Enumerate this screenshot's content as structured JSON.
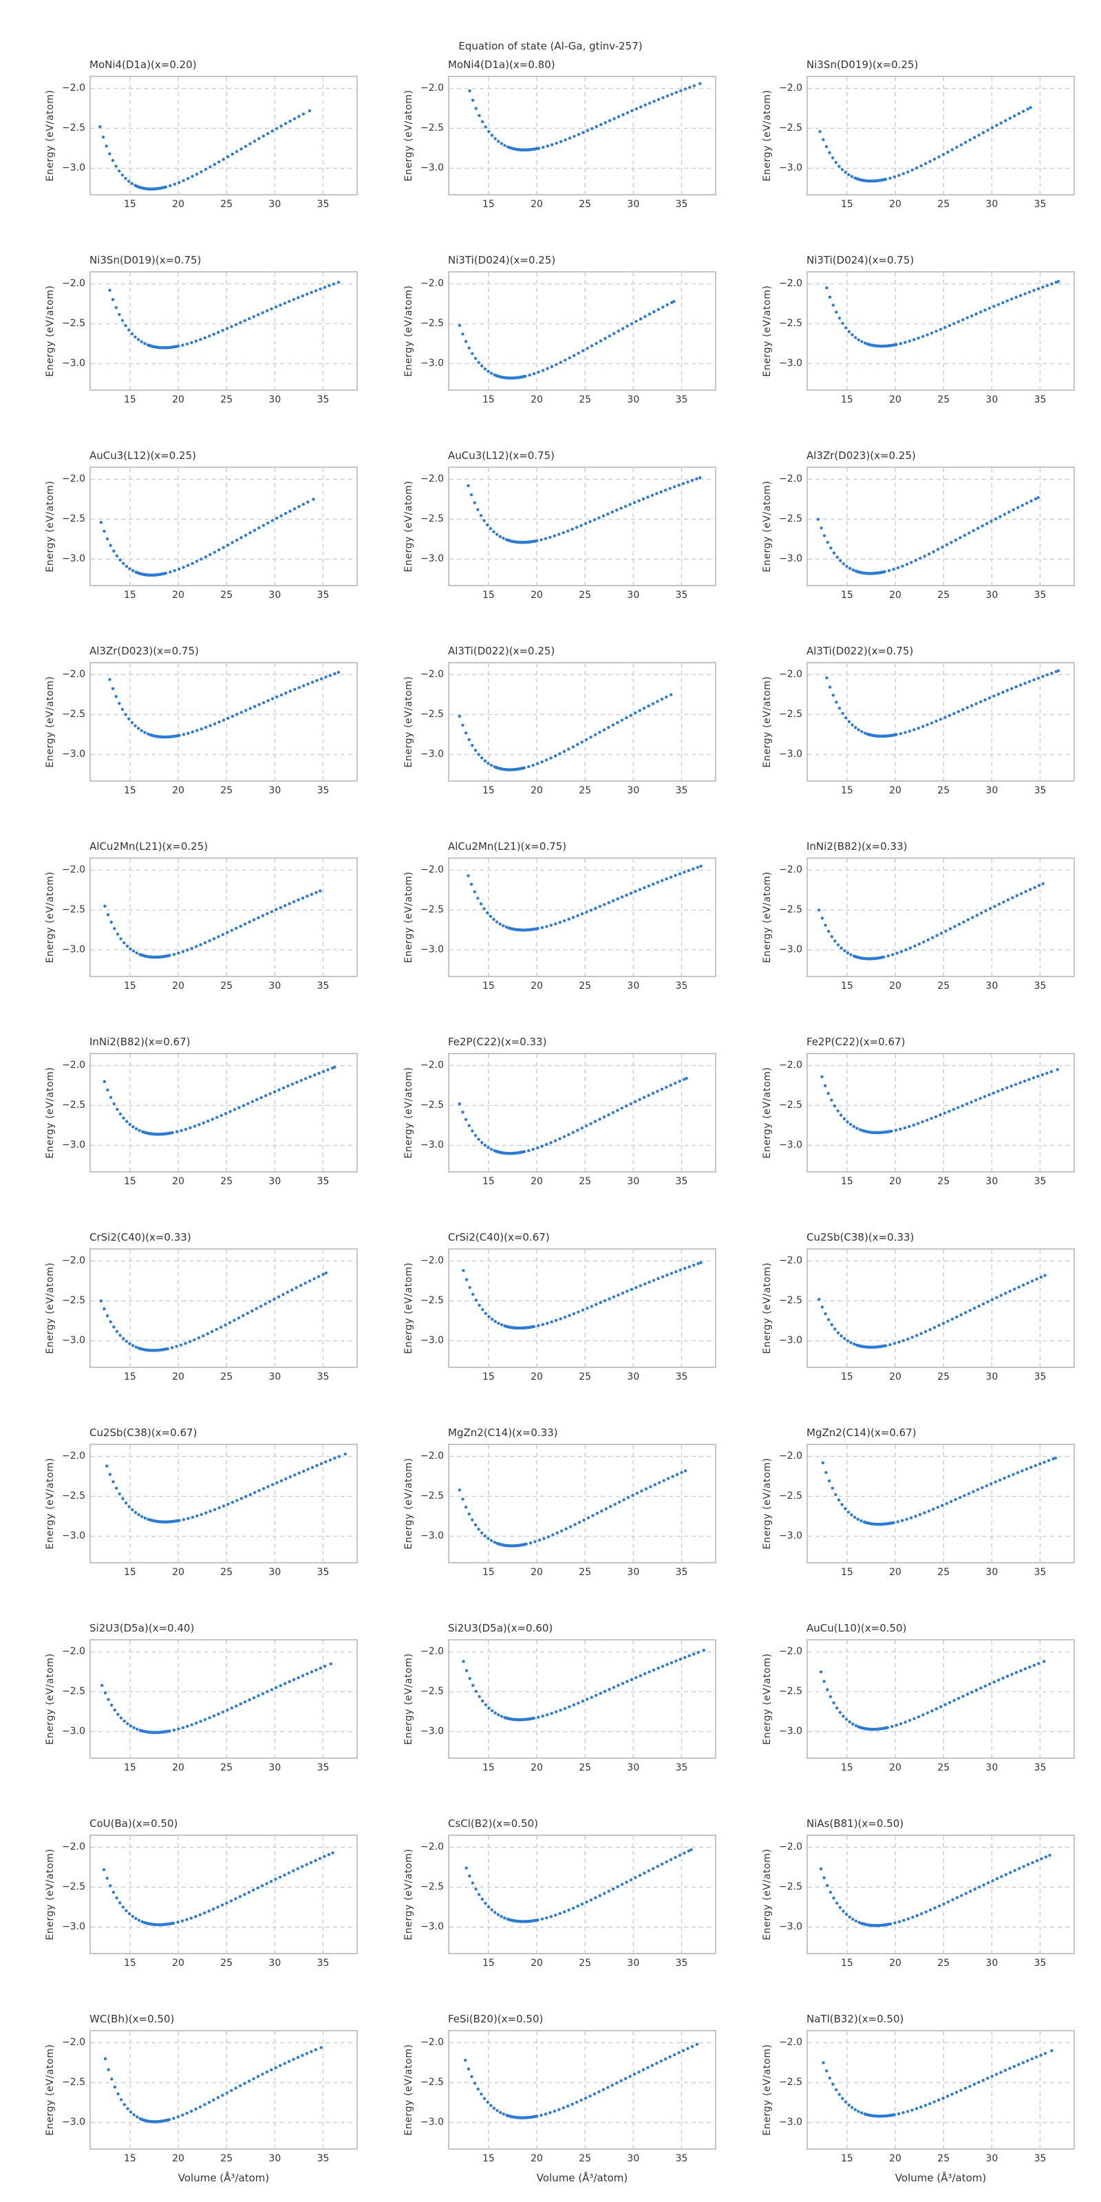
{
  "chart_data": {
    "type": "scatter",
    "shared": {
      "suptitle": "Equation of state (Al-Ga, gtinv-257)",
      "xlabel": "Volume (Å³/atom)",
      "ylabel": "Energy (eV/atom)",
      "xlim": [
        10.8,
        38.6
      ],
      "ylim": [
        -3.34,
        -1.84
      ],
      "xticks": [
        15,
        20,
        25,
        30,
        35
      ],
      "xtick_labels": [
        "15",
        "20",
        "25",
        "30",
        "35"
      ],
      "yticks": [
        -2.0,
        -2.5,
        -3.0
      ],
      "ytick_labels": [
        "−2.0",
        "−2.5",
        "−3.0"
      ],
      "grid": true,
      "grid_style": "dashed",
      "marker": "circle",
      "curve_model": "birch-murnaghan",
      "sampling": {
        "step_left": 0.33,
        "dense_halfwidth": 1.5,
        "step_dense": 0.1,
        "step_right": 0.46
      }
    },
    "style": {
      "dot_color": "#2e7bd2",
      "grid_color": "#cfcfcf",
      "spine_color": "#c5c5c5",
      "text_color": "#333333",
      "background": "#ffffff"
    },
    "layout": {
      "rows": 11,
      "cols": 3
    },
    "subplots": [
      {
        "title": "MoNi4(D1a)(x=0.20)",
        "v_first": 11.9,
        "e_first": -2.48,
        "v_min": 17.2,
        "e_min": -3.26,
        "v_last": 33.6,
        "e_last": -2.28
      },
      {
        "title": "MoNi4(D1a)(x=0.80)",
        "v_first": 13.05,
        "e_first": -2.03,
        "v_min": 18.7,
        "e_min": -2.77,
        "v_last": 36.9,
        "e_last": -1.94
      },
      {
        "title": "Ni3Sn(D019)(x=0.25)",
        "v_first": 12.2,
        "e_first": -2.54,
        "v_min": 17.5,
        "e_min": -3.16,
        "v_last": 34.0,
        "e_last": -2.24
      },
      {
        "title": "Ni3Sn(D019)(x=0.75)",
        "v_first": 12.9,
        "e_first": -2.08,
        "v_min": 18.5,
        "e_min": -2.8,
        "v_last": 36.6,
        "e_last": -1.98
      },
      {
        "title": "Ni3Ti(D024)(x=0.25)",
        "v_first": 12.0,
        "e_first": -2.52,
        "v_min": 17.3,
        "e_min": -3.18,
        "v_last": 34.2,
        "e_last": -2.22
      },
      {
        "title": "Ni3Ti(D024)(x=0.75)",
        "v_first": 12.9,
        "e_first": -2.05,
        "v_min": 18.6,
        "e_min": -2.78,
        "v_last": 36.9,
        "e_last": -1.97
      },
      {
        "title": "AuCu3(L12)(x=0.25)",
        "v_first": 12.0,
        "e_first": -2.54,
        "v_min": 17.2,
        "e_min": -3.2,
        "v_last": 34.0,
        "e_last": -2.25
      },
      {
        "title": "AuCu3(L12)(x=0.75)",
        "v_first": 12.9,
        "e_first": -2.08,
        "v_min": 18.5,
        "e_min": -2.79,
        "v_last": 36.9,
        "e_last": -1.98
      },
      {
        "title": "Al3Zr(D023)(x=0.25)",
        "v_first": 12.0,
        "e_first": -2.5,
        "v_min": 17.4,
        "e_min": -3.18,
        "v_last": 34.8,
        "e_last": -2.23
      },
      {
        "title": "Al3Zr(D023)(x=0.75)",
        "v_first": 12.9,
        "e_first": -2.06,
        "v_min": 18.6,
        "e_min": -2.78,
        "v_last": 36.6,
        "e_last": -1.97
      },
      {
        "title": "Al3Ti(D022)(x=0.25)",
        "v_first": 12.0,
        "e_first": -2.52,
        "v_min": 17.2,
        "e_min": -3.19,
        "v_last": 33.9,
        "e_last": -2.25
      },
      {
        "title": "Al3Ti(D022)(x=0.75)",
        "v_first": 12.9,
        "e_first": -2.04,
        "v_min": 18.6,
        "e_min": -2.77,
        "v_last": 36.9,
        "e_last": -1.95
      },
      {
        "title": "AlCu2Mn(L21)(x=0.25)",
        "v_first": 12.4,
        "e_first": -2.45,
        "v_min": 17.6,
        "e_min": -3.09,
        "v_last": 34.7,
        "e_last": -2.26
      },
      {
        "title": "AlCu2Mn(L21)(x=0.75)",
        "v_first": 12.9,
        "e_first": -2.07,
        "v_min": 18.6,
        "e_min": -2.75,
        "v_last": 37.0,
        "e_last": -1.95
      },
      {
        "title": "InNi2(B82)(x=0.33)",
        "v_first": 12.1,
        "e_first": -2.5,
        "v_min": 17.3,
        "e_min": -3.11,
        "v_last": 35.3,
        "e_last": -2.17
      },
      {
        "title": "InNi2(B82)(x=0.67)",
        "v_first": 12.35,
        "e_first": -2.2,
        "v_min": 17.9,
        "e_min": -2.86,
        "v_last": 36.2,
        "e_last": -2.02
      },
      {
        "title": "Fe2P(C22)(x=0.33)",
        "v_first": 12.0,
        "e_first": -2.48,
        "v_min": 17.2,
        "e_min": -3.1,
        "v_last": 35.5,
        "e_last": -2.16
      },
      {
        "title": "Fe2P(C22)(x=0.67)",
        "v_first": 12.4,
        "e_first": -2.14,
        "v_min": 18.1,
        "e_min": -2.84,
        "v_last": 36.8,
        "e_last": -2.05
      },
      {
        "title": "CrSi2(C40)(x=0.33)",
        "v_first": 12.0,
        "e_first": -2.5,
        "v_min": 17.4,
        "e_min": -3.12,
        "v_last": 35.3,
        "e_last": -2.15
      },
      {
        "title": "CrSi2(C40)(x=0.67)",
        "v_first": 12.4,
        "e_first": -2.12,
        "v_min": 18.2,
        "e_min": -2.84,
        "v_last": 37.0,
        "e_last": -2.02
      },
      {
        "title": "Cu2Sb(C38)(x=0.33)",
        "v_first": 12.1,
        "e_first": -2.48,
        "v_min": 17.5,
        "e_min": -3.08,
        "v_last": 35.5,
        "e_last": -2.18
      },
      {
        "title": "Cu2Sb(C38)(x=0.67)",
        "v_first": 12.6,
        "e_first": -2.12,
        "v_min": 18.6,
        "e_min": -2.82,
        "v_last": 37.3,
        "e_last": -1.97
      },
      {
        "title": "MgZn2(C14)(x=0.33)",
        "v_first": 12.0,
        "e_first": -2.42,
        "v_min": 17.4,
        "e_min": -3.12,
        "v_last": 35.4,
        "e_last": -2.18
      },
      {
        "title": "MgZn2(C14)(x=0.67)",
        "v_first": 12.5,
        "e_first": -2.08,
        "v_min": 18.3,
        "e_min": -2.85,
        "v_last": 36.6,
        "e_last": -2.02
      },
      {
        "title": "Si2U3(D5a)(x=0.40)",
        "v_first": 12.1,
        "e_first": -2.42,
        "v_min": 17.6,
        "e_min": -3.01,
        "v_last": 35.8,
        "e_last": -2.15
      },
      {
        "title": "Si2U3(D5a)(x=0.60)",
        "v_first": 12.4,
        "e_first": -2.12,
        "v_min": 18.2,
        "e_min": -2.85,
        "v_last": 37.3,
        "e_last": -1.98
      },
      {
        "title": "AuCu(L10)(x=0.50)",
        "v_first": 12.3,
        "e_first": -2.25,
        "v_min": 17.7,
        "e_min": -2.97,
        "v_last": 35.4,
        "e_last": -2.12
      },
      {
        "title": "CoU(Ba)(x=0.50)",
        "v_first": 12.3,
        "e_first": -2.28,
        "v_min": 18.0,
        "e_min": -2.97,
        "v_last": 36.0,
        "e_last": -2.07
      },
      {
        "title": "CsCl(B2)(x=0.50)",
        "v_first": 12.7,
        "e_first": -2.26,
        "v_min": 18.6,
        "e_min": -2.93,
        "v_last": 36.0,
        "e_last": -2.03
      },
      {
        "title": "NiAs(B81)(x=0.50)",
        "v_first": 12.3,
        "e_first": -2.27,
        "v_min": 18.0,
        "e_min": -2.98,
        "v_last": 36.0,
        "e_last": -2.1
      },
      {
        "title": "WC(Bh)(x=0.50)",
        "v_first": 12.44,
        "e_first": -2.2,
        "v_min": 17.56,
        "e_min": -2.99,
        "v_last": 34.8,
        "e_last": -2.06
      },
      {
        "title": "FeSi(B20)(x=0.50)",
        "v_first": 12.6,
        "e_first": -2.22,
        "v_min": 18.5,
        "e_min": -2.94,
        "v_last": 36.6,
        "e_last": -2.02
      },
      {
        "title": "NaTl(B32)(x=0.50)",
        "v_first": 12.55,
        "e_first": -2.25,
        "v_min": 18.4,
        "e_min": -2.92,
        "v_last": 36.2,
        "e_last": -2.1
      }
    ]
  }
}
